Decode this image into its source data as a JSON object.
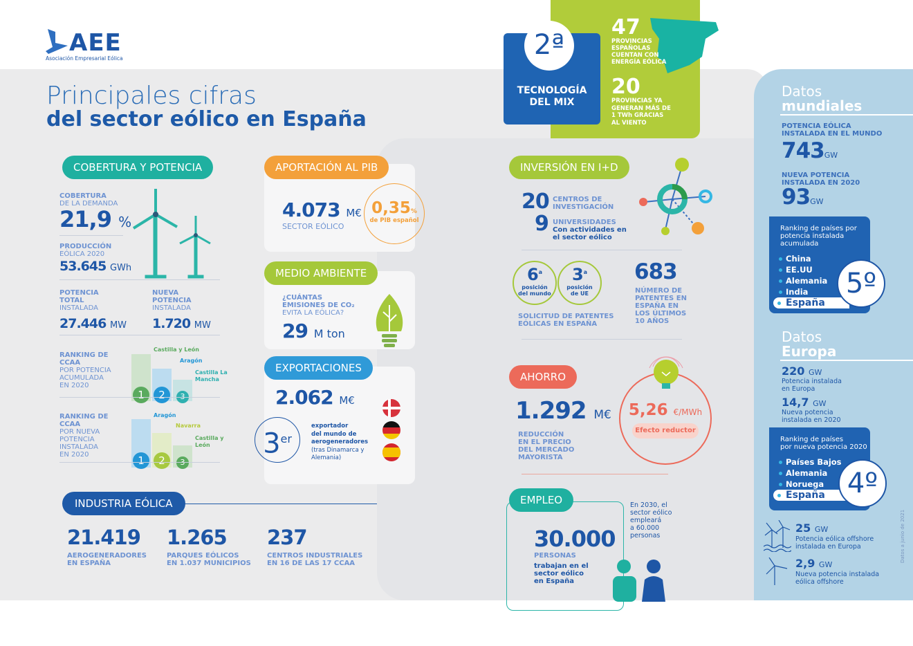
{
  "logo": {
    "text": "AEE",
    "subtitle": "Asociación Empresarial Eólica"
  },
  "title": {
    "line1": "Principales cifras",
    "line2": "del sector eólico en España"
  },
  "mix": {
    "rank": "2ª",
    "label1": "TECNOLOGÍA",
    "label2": "DEL MIX"
  },
  "provincias": {
    "n1": "47",
    "t1": [
      "PROVINCIAS",
      "ESPAÑOLAS",
      "CUENTAN CON",
      "ENERGÍA EÓLICA"
    ],
    "n2": "20",
    "t2": [
      "PROVINCIAS YA",
      "GENERAN MÁS DE",
      "1 TWh GRACIAS",
      "AL VIENTO"
    ]
  },
  "cobertura": {
    "header": "COBERTURA Y POTENCIA",
    "demanda_l1": "COBERTURA",
    "demanda_l2": "DE LA DEMANDA",
    "demanda_value": "21,9",
    "demanda_unit": "%",
    "prod_l1": "PRODUCCIÓN",
    "prod_l2": "EÓLICA 2020",
    "prod_value": "53.645",
    "prod_unit": "GWh",
    "total_l1": "POTENCIA",
    "total_l2": "TOTAL",
    "total_l3": "INSTALADA",
    "total_value": "27.446",
    "total_unit": "MW",
    "nueva_l1": "NUEVA",
    "nueva_l2": "POTENCIA",
    "nueva_l3": "INSTALADA",
    "nueva_value": "1.720",
    "nueva_unit": "MW",
    "rank1": {
      "l1": "RANKING DE",
      "l2": "CCAA",
      "l3": "POR POTENCIA",
      "l4": "ACUMULADA",
      "l5": "EN 2020",
      "items": [
        "Castilla y León",
        "Aragón",
        "Castilla La Mancha"
      ]
    },
    "rank2": {
      "l1": "RANKING DE",
      "l2": "CCAA",
      "l3": "POR NUEVA",
      "l4": "POTENCIA",
      "l5": "INSTALADA",
      "l6": "EN 2020",
      "items": [
        "Aragón",
        "Navarra",
        "Castilla y León"
      ]
    },
    "nums": [
      "1",
      "2",
      "3"
    ]
  },
  "pib": {
    "header": "APORTACIÓN AL PIB",
    "value": "4.073",
    "unit": "M€",
    "label": "SECTOR EÓLICO",
    "pct": "0,35",
    "pct_unit": "%",
    "pct_label": "de PIB español"
  },
  "medio": {
    "header": "MEDIO AMBIENTE",
    "q1": "¿CUÁNTAS",
    "q2": "EMISIONES DE CO₂",
    "q3": "EVITA LA EÓLICA?",
    "value": "29",
    "unit": "M ton"
  },
  "export": {
    "header": "EXPORTACIONES",
    "value": "2.062",
    "unit": "M€",
    "rank": "3",
    "rank_sup": "er",
    "t1": "exportador",
    "t2": "del mundo de",
    "t3": "aerogeneradores",
    "t4": "(tras Dinamarca y",
    "t5": "Alemania)"
  },
  "industria": {
    "header": "INDUSTRIA EÓLICA",
    "items": [
      {
        "value": "21.419",
        "l1": "AEROGENERADORES",
        "l2": "EN ESPAÑA"
      },
      {
        "value": "1.265",
        "l1": "PARQUES EÓLICOS",
        "l2": "EN 1.037 MUNICIPIOS"
      },
      {
        "value": "237",
        "l1": "CENTROS INDUSTRIALES",
        "l2": "EN 16 DE LAS 17 CCAA"
      }
    ]
  },
  "idi": {
    "header": "INVERSIÓN EN I+D",
    "centros": "20",
    "centros_l1": "CENTROS DE",
    "centros_l2": "INVESTIGACIÓN",
    "univ": "9",
    "univ_l1": "UNIVERSIDADES",
    "univ_l2": "Con actividades en",
    "univ_l3": "el sector eólico",
    "pos1": "6",
    "pos1_l1": "posición",
    "pos1_l2": "del mundo",
    "pos2": "3",
    "pos2_l1": "posición",
    "pos2_l2": "de UE",
    "sup": "a",
    "sol_l1": "SOLICITUD DE PATENTES",
    "sol_l2": "EÓLICAS EN ESPAÑA",
    "patentes": "683",
    "pat_l1": "NÚMERO DE",
    "pat_l2": "PATENTES EN",
    "pat_l3": "ESPAÑA EN",
    "pat_l4": "LOS ÚLTIMOS",
    "pat_l5": "10 AÑOS"
  },
  "ahorro": {
    "header": "AHORRO",
    "value": "1.292",
    "unit": "M€",
    "l1": "REDUCCIÓN",
    "l2": "EN EL PRECIO",
    "l3": "DEL MERCADO",
    "l4": "MAYORISTA",
    "price": "5,26",
    "price_unit": "€/MWh",
    "effect": "Efecto reductor"
  },
  "empleo": {
    "header": "EMPLEO",
    "value": "30.000",
    "label": "PERSONAS",
    "t1": "trabajan en el",
    "t2": "sector eólico",
    "t3": "en España",
    "f1": "En 2030, el",
    "f2": "sector eólico",
    "f3": "empleará",
    "f4": "a 60.000",
    "f5": "personas"
  },
  "mundo": {
    "t1": "Datos",
    "t2": "mundiales",
    "pot_l1": "POTENCIA EÓLICA",
    "pot_l2": "INSTALADA EN EL MUNDO",
    "pot": "743",
    "unit": "GW",
    "nueva_l1": "NUEVA POTENCIA",
    "nueva_l2": "INSTALADA EN 2020",
    "nueva": "93",
    "rank_h1": "Ranking de países por",
    "rank_h2": "potencia instalada",
    "rank_h3": "acumulada",
    "rank": [
      "China",
      "EE.UU",
      "Alemania",
      "India",
      "España"
    ],
    "pos": "5º"
  },
  "europa": {
    "t1": "Datos",
    "t2": "Europa",
    "pot": "220",
    "unit": "GW",
    "pot_l1": "Potencia instalada",
    "pot_l2": "en Europa",
    "nueva": "14,7",
    "nueva_l1": "Nueva potencia",
    "nueva_l2": "instalada en 2020",
    "rank_h1": "Ranking de países",
    "rank_h2": "por nueva potencia 2020",
    "rank": [
      "Países Bajos",
      "Alemania",
      "Noruega",
      "España"
    ],
    "pos": "4º",
    "off": "25",
    "off_l1": "Potencia eólica offshore",
    "off_l2": "instalada en Europa",
    "offn": "2,9",
    "offn_l1": "Nueva potencia instalada",
    "offn_l2": "eólica offshore"
  },
  "footnote": "Datos a junio de 2021",
  "colors": {
    "dark_blue": "#1e56a6",
    "teal": "#1fb0a0",
    "orange": "#f3a03a",
    "green": "#a5c83a",
    "blue": "#2f9ad8",
    "red": "#ec6a5a",
    "lime": "#b6cf2e"
  }
}
